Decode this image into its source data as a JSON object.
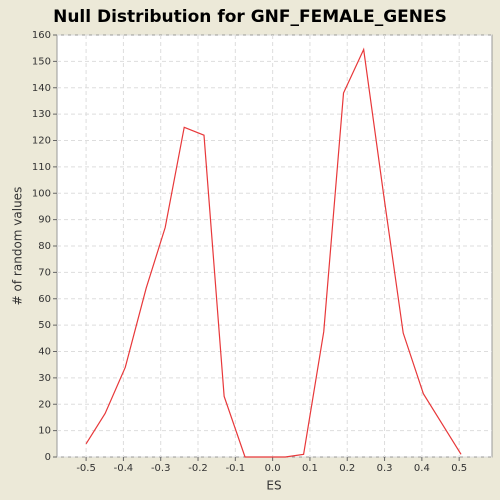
{
  "chart_data": {
    "type": "line",
    "title": "Null Distribution for GNF_FEMALE_GENES",
    "xlabel": "ES",
    "ylabel": "# of random values",
    "x": [
      -0.5,
      -0.449,
      -0.395,
      -0.339,
      -0.288,
      -0.237,
      -0.184,
      -0.13,
      -0.074,
      -0.02,
      0.034,
      0.083,
      0.137,
      0.19,
      0.244,
      0.297,
      0.35,
      0.404,
      0.505
    ],
    "series": [
      {
        "name": "Null distribution",
        "color": "#e8383a",
        "values": [
          5,
          16.5,
          34,
          64,
          87,
          125,
          122,
          23,
          0,
          0,
          0,
          1,
          47.5,
          138,
          154.5,
          100,
          47,
          24,
          1
        ]
      }
    ],
    "xlim": [
      -0.578,
      0.588
    ],
    "ylim": [
      0,
      160
    ],
    "xticks": [
      -0.5,
      -0.4,
      -0.3,
      -0.2,
      -0.1,
      {
        "value": 0,
        "label": "0.0"
      },
      0.1,
      0.2,
      0.3,
      0.4,
      0.5
    ],
    "yticks": [
      0,
      10,
      20,
      30,
      40,
      50,
      60,
      70,
      80,
      90,
      100,
      110,
      120,
      130,
      140,
      150,
      160
    ],
    "grid": true
  }
}
